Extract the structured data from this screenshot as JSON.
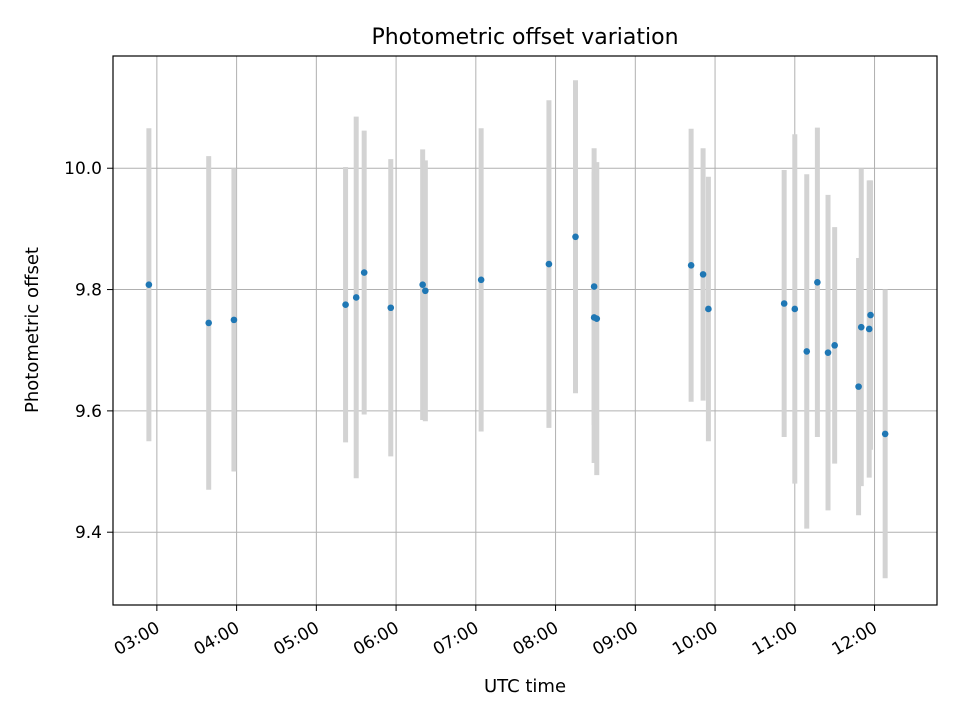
{
  "chart_data": {
    "type": "scatter",
    "title": "Photometric offset variation",
    "xlabel": "UTC time",
    "ylabel": "Photometric offset",
    "x_axis": "time",
    "xlim": [
      "02:27",
      "12:47"
    ],
    "ylim": [
      9.28,
      10.185
    ],
    "grid": true,
    "legend": "none",
    "x_ticks": [
      "03:00",
      "04:00",
      "05:00",
      "06:00",
      "07:00",
      "08:00",
      "09:00",
      "10:00",
      "11:00",
      "12:00"
    ],
    "y_ticks": [
      9.4,
      9.6,
      9.8,
      10.0
    ],
    "point_color": "#1f77b4",
    "errorbar_color": "#d3d3d3",
    "series": [
      {
        "points": [
          {
            "x": "02:54",
            "y": 9.808,
            "err": 0.258
          },
          {
            "x": "03:39",
            "y": 9.745,
            "err": 0.275
          },
          {
            "x": "03:58",
            "y": 9.75,
            "err": 0.25
          },
          {
            "x": "05:22",
            "y": 9.775,
            "err": 0.227
          },
          {
            "x": "05:30",
            "y": 9.787,
            "err": 0.298
          },
          {
            "x": "05:36",
            "y": 9.828,
            "err": 0.234
          },
          {
            "x": "05:56",
            "y": 9.77,
            "err": 0.245
          },
          {
            "x": "06:20",
            "y": 9.808,
            "err": 0.223
          },
          {
            "x": "06:22",
            "y": 9.798,
            "err": 0.215
          },
          {
            "x": "07:04",
            "y": 9.816,
            "err": 0.25
          },
          {
            "x": "07:55",
            "y": 9.842,
            "err": 0.27
          },
          {
            "x": "08:15",
            "y": 9.887,
            "err": 0.258
          },
          {
            "x": "08:29",
            "y": 9.805,
            "err": 0.228
          },
          {
            "x": "08:29",
            "y": 9.754,
            "err": 0.24
          },
          {
            "x": "08:31",
            "y": 9.752,
            "err": 0.258
          },
          {
            "x": "09:42",
            "y": 9.84,
            "err": 0.225
          },
          {
            "x": "09:51",
            "y": 9.825,
            "err": 0.208
          },
          {
            "x": "09:55",
            "y": 9.768,
            "err": 0.218
          },
          {
            "x": "10:52",
            "y": 9.777,
            "err": 0.22
          },
          {
            "x": "11:00",
            "y": 9.768,
            "err": 0.288
          },
          {
            "x": "11:09",
            "y": 9.698,
            "err": 0.292
          },
          {
            "x": "11:17",
            "y": 9.812,
            "err": 0.255
          },
          {
            "x": "11:25",
            "y": 9.696,
            "err": 0.26
          },
          {
            "x": "11:30",
            "y": 9.708,
            "err": 0.195
          },
          {
            "x": "11:48",
            "y": 9.64,
            "err": 0.212
          },
          {
            "x": "11:50",
            "y": 9.738,
            "err": 0.262
          },
          {
            "x": "11:56",
            "y": 9.735,
            "err": 0.245
          },
          {
            "x": "11:57",
            "y": 9.758,
            "err": 0.222
          },
          {
            "x": "12:08",
            "y": 9.562,
            "err": 0.238
          }
        ]
      }
    ]
  }
}
